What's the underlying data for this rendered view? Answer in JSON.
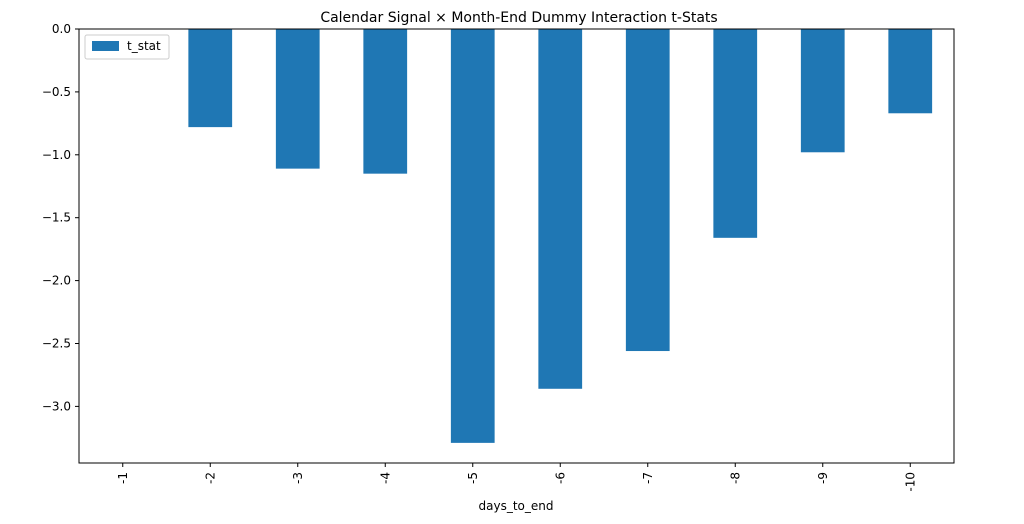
{
  "chart_data": {
    "type": "bar",
    "title": "Calendar Signal × Month-End Dummy Interaction t-Stats",
    "xlabel": "days_to_end",
    "ylabel": "",
    "categories": [
      "-1",
      "-2",
      "-3",
      "-4",
      "-5",
      "-6",
      "-7",
      "-8",
      "-9",
      "-10"
    ],
    "series": [
      {
        "name": "t_stat",
        "values": [
          0.0,
          -0.78,
          -1.11,
          -1.15,
          -3.29,
          -2.86,
          -2.56,
          -1.66,
          -0.98,
          -0.67
        ],
        "color": "#1f77b4"
      }
    ],
    "ylim": [
      -3.45,
      0.0
    ],
    "yticks": [
      0.0,
      -0.5,
      -1.0,
      -1.5,
      -2.0,
      -2.5,
      -3.0
    ],
    "ytick_labels": [
      "0.0",
      "−0.5",
      "−1.0",
      "−1.5",
      "−2.0",
      "−2.5",
      "−3.0"
    ],
    "xtick_rotation": "vertical",
    "grid": false,
    "legend": {
      "entries": [
        "t_stat"
      ],
      "position": "top-left"
    }
  }
}
